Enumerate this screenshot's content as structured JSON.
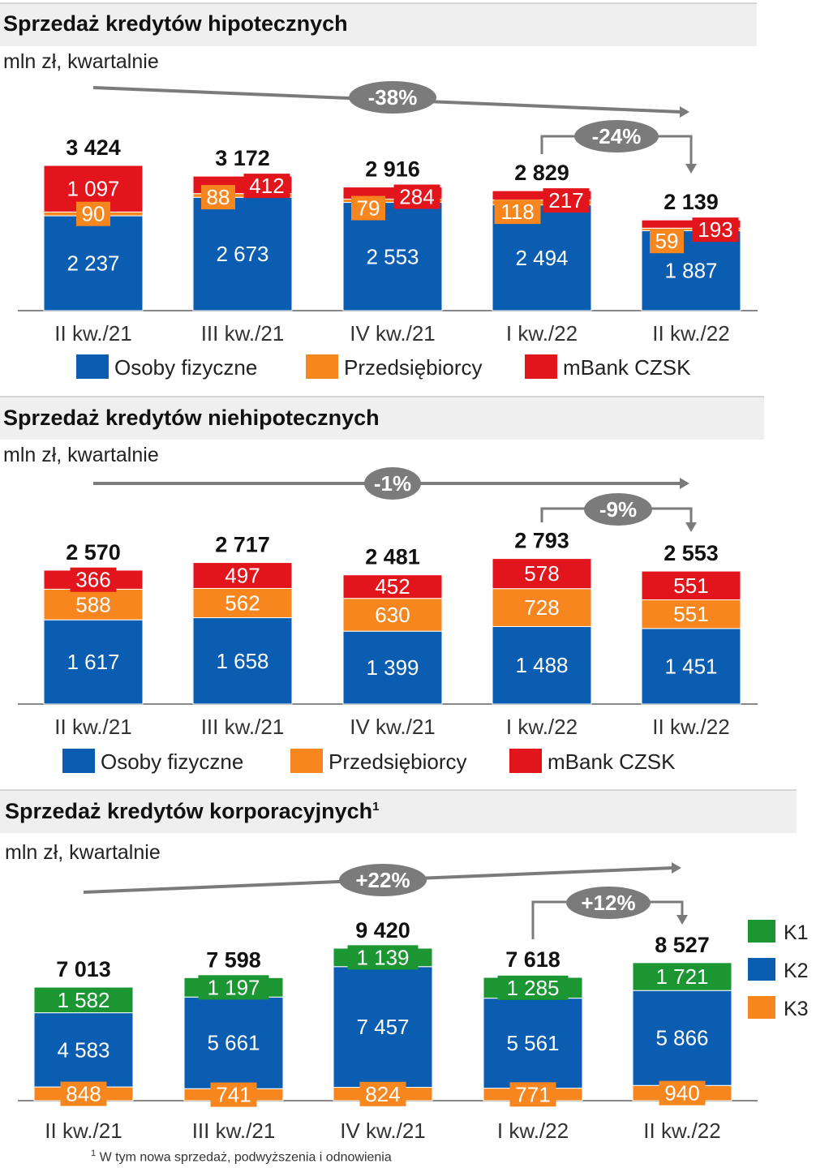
{
  "colors": {
    "blue": "#0b5db1",
    "orange": "#f7861f",
    "red": "#e2141c",
    "green": "#1b9632",
    "pill": "#7b7b7b",
    "axis": "#888888"
  },
  "footnote": {
    "marker": "1",
    "text": "W tym nowa sprzedaż, podwyższenia i odnowienia"
  },
  "chart_data": [
    {
      "type": "bar",
      "stacked": true,
      "title": "Sprzedaż kredytów hipotecznych",
      "subtitle": "mln zł, kwartalnie",
      "categories": [
        "II kw./21",
        "III kw./21",
        "IV kw./21",
        "I kw./22",
        "II kw./22"
      ],
      "series": [
        {
          "name": "Osoby fizyczne",
          "color": "blue",
          "values": [
            2237,
            2673,
            2553,
            2494,
            1887
          ]
        },
        {
          "name": "Przedsiębiorcy",
          "color": "orange",
          "values": [
            90,
            88,
            79,
            118,
            59
          ]
        },
        {
          "name": "mBank CZSK",
          "color": "red",
          "values": [
            1097,
            412,
            284,
            217,
            193
          ]
        }
      ],
      "totals": [
        "3 424",
        "3 172",
        "2 916",
        "2 829",
        "2 139"
      ],
      "value_labels": [
        [
          "2 237",
          "2 673",
          "2 553",
          "2 494",
          "1 887"
        ],
        [
          "90",
          "88",
          "79",
          "118",
          "59"
        ],
        [
          "1 097",
          "412",
          "284",
          "217",
          "193"
        ]
      ],
      "annotations": [
        {
          "label": "-38%",
          "from": "II kw./21",
          "to": "II kw./22"
        },
        {
          "label": "-24%",
          "from": "I kw./22",
          "to": "II kw./22"
        }
      ],
      "legend": "bottom"
    },
    {
      "type": "bar",
      "stacked": true,
      "title": "Sprzedaż kredytów niehipotecznych",
      "subtitle": "mln zł, kwartalnie",
      "categories": [
        "II kw./21",
        "III kw./21",
        "IV kw./21",
        "I kw./22",
        "II kw./22"
      ],
      "series": [
        {
          "name": "Osoby fizyczne",
          "color": "blue",
          "values": [
            1617,
            1658,
            1399,
            1488,
            1451
          ]
        },
        {
          "name": "Przedsiębiorcy",
          "color": "orange",
          "values": [
            588,
            562,
            630,
            728,
            551
          ]
        },
        {
          "name": "mBank CZSK",
          "color": "red",
          "values": [
            366,
            497,
            452,
            578,
            551
          ]
        }
      ],
      "totals": [
        "2 570",
        "2 717",
        "2 481",
        "2 793",
        "2 553"
      ],
      "value_labels": [
        [
          "1 617",
          "1 658",
          "1 399",
          "1 488",
          "1 451"
        ],
        [
          "588",
          "562",
          "630",
          "728",
          "551"
        ],
        [
          "366",
          "497",
          "452",
          "578",
          "551"
        ]
      ],
      "annotations": [
        {
          "label": "-1%",
          "from": "II kw./21",
          "to": "II kw./22"
        },
        {
          "label": "-9%",
          "from": "I kw./22",
          "to": "II kw./22"
        }
      ],
      "legend": "bottom"
    },
    {
      "type": "bar",
      "stacked": true,
      "title": "Sprzedaż kredytów korporacyjnych",
      "title_sup": "1",
      "subtitle": "mln zł, kwartalnie",
      "categories": [
        "II kw./21",
        "III kw./21",
        "IV kw./21",
        "I kw./22",
        "II kw./22"
      ],
      "series": [
        {
          "name": "K3",
          "color": "orange",
          "values": [
            848,
            741,
            824,
            771,
            940
          ]
        },
        {
          "name": "K2",
          "color": "blue",
          "values": [
            4583,
            5661,
            7457,
            5561,
            5866
          ]
        },
        {
          "name": "K1",
          "color": "green",
          "values": [
            1582,
            1197,
            1139,
            1285,
            1721
          ]
        }
      ],
      "totals": [
        "7 013",
        "7 598",
        "9 420",
        "7 618",
        "8 527"
      ],
      "value_labels": [
        [
          "848",
          "741",
          "824",
          "771",
          "940"
        ],
        [
          "4 583",
          "5 661",
          "7 457",
          "5 561",
          "5 866"
        ],
        [
          "1 582",
          "1 197",
          "1 139",
          "1 285",
          "1 721"
        ]
      ],
      "annotations": [
        {
          "label": "+22%",
          "from": "II kw./21",
          "to": "II kw./22"
        },
        {
          "label": "+12%",
          "from": "I kw./22",
          "to": "II kw./22"
        }
      ],
      "legend": "right",
      "legend_order": [
        "K1",
        "K2",
        "K3"
      ]
    }
  ]
}
